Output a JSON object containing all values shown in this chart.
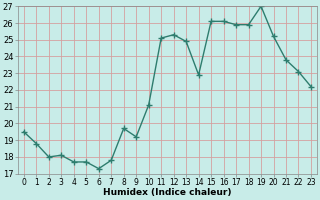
{
  "x": [
    0,
    1,
    2,
    3,
    4,
    5,
    6,
    7,
    8,
    9,
    10,
    11,
    12,
    13,
    14,
    15,
    16,
    17,
    18,
    19,
    20,
    21,
    22,
    23
  ],
  "y": [
    19.5,
    18.8,
    18.0,
    18.1,
    17.7,
    17.7,
    17.3,
    17.8,
    19.7,
    19.2,
    21.1,
    25.1,
    25.3,
    24.9,
    22.9,
    26.1,
    26.1,
    25.9,
    25.9,
    27.0,
    25.2,
    23.8,
    23.1,
    22.2
  ],
  "line_color": "#2e7d6e",
  "marker": "+",
  "markersize": 4,
  "markeredgewidth": 1.0,
  "linewidth": 1.0,
  "bg_color": "#c8ece8",
  "grid_color": "#d4a0a0",
  "xlabel": "Humidex (Indice chaleur)",
  "ylim": [
    17,
    27
  ],
  "xlim": [
    -0.5,
    23.5
  ],
  "yticks": [
    17,
    18,
    19,
    20,
    21,
    22,
    23,
    24,
    25,
    26,
    27
  ],
  "xticks": [
    0,
    1,
    2,
    3,
    4,
    5,
    6,
    7,
    8,
    9,
    10,
    11,
    12,
    13,
    14,
    15,
    16,
    17,
    18,
    19,
    20,
    21,
    22,
    23
  ],
  "xlabel_fontsize": 6.5,
  "tick_fontsize": 5.5,
  "ytick_fontsize": 6.0
}
